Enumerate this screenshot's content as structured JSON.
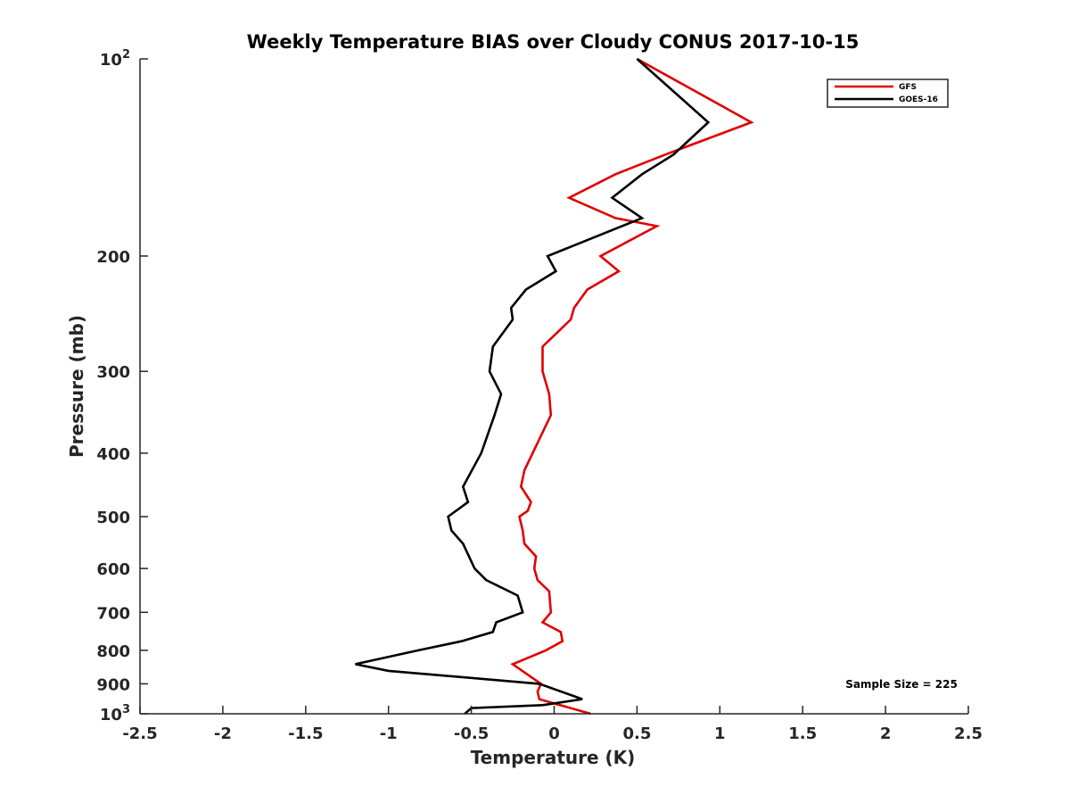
{
  "chart_data": {
    "type": "line",
    "title": "Weekly Temperature BIAS over Cloudy CONUS 2017-10-15",
    "xlabel": "Temperature (K)",
    "ylabel": "Pressure (mb)",
    "xlim": [
      -2.5,
      2.5
    ],
    "ylim": [
      1000,
      100
    ],
    "y_scale": "log",
    "y_reversed": true,
    "x_ticks": [
      -2.5,
      -2,
      -1.5,
      -1,
      -0.5,
      0,
      0.5,
      1,
      1.5,
      2,
      2.5
    ],
    "x_tick_labels": [
      "-2.5",
      "-2",
      "-1.5",
      "-1",
      "-0.5",
      "0",
      "0.5",
      "1",
      "1.5",
      "2",
      "2.5"
    ],
    "y_ticks": [
      100,
      200,
      300,
      400,
      500,
      600,
      700,
      800,
      900,
      1000
    ],
    "y_tick_labels": [
      "200",
      "300",
      "400",
      "500",
      "600",
      "700",
      "800",
      "900"
    ],
    "y_tick_power_labels": [
      {
        "value": 100,
        "base": "10",
        "exponent": "2"
      },
      {
        "value": 1000,
        "base": "10",
        "exponent": "3"
      }
    ],
    "grid": false,
    "legend_position": "top-right",
    "annotation": "Sample Size = 225",
    "series": [
      {
        "name": "GFS",
        "color": "#e00000",
        "points": [
          [
            0.5,
            100
          ],
          [
            1.19,
            125
          ],
          [
            0.67,
            140
          ],
          [
            0.37,
            150
          ],
          [
            0.09,
            163
          ],
          [
            0.37,
            175
          ],
          [
            0.62,
            180
          ],
          [
            0.28,
            200
          ],
          [
            0.39,
            211
          ],
          [
            0.2,
            225
          ],
          [
            0.12,
            240
          ],
          [
            0.1,
            250
          ],
          [
            -0.07,
            275
          ],
          [
            -0.07,
            300
          ],
          [
            -0.03,
            325
          ],
          [
            -0.02,
            350
          ],
          [
            -0.18,
            425
          ],
          [
            -0.2,
            450
          ],
          [
            -0.14,
            475
          ],
          [
            -0.16,
            490
          ],
          [
            -0.21,
            500
          ],
          [
            -0.19,
            525
          ],
          [
            -0.18,
            550
          ],
          [
            -0.11,
            575
          ],
          [
            -0.12,
            600
          ],
          [
            -0.1,
            625
          ],
          [
            -0.03,
            650
          ],
          [
            -0.02,
            700
          ],
          [
            -0.07,
            725
          ],
          [
            0.04,
            750
          ],
          [
            0.05,
            775
          ],
          [
            -0.05,
            800
          ],
          [
            -0.25,
            840
          ],
          [
            -0.08,
            900
          ],
          [
            -0.1,
            925
          ],
          [
            -0.09,
            950
          ],
          [
            0.22,
            1000
          ]
        ]
      },
      {
        "name": "GOES-16",
        "color": "#000000",
        "points": [
          [
            0.5,
            100
          ],
          [
            0.93,
            125
          ],
          [
            0.72,
            140
          ],
          [
            0.53,
            150
          ],
          [
            0.35,
            163
          ],
          [
            0.53,
            175
          ],
          [
            -0.04,
            200
          ],
          [
            0.01,
            211
          ],
          [
            -0.17,
            225
          ],
          [
            -0.26,
            240
          ],
          [
            -0.25,
            250
          ],
          [
            -0.37,
            275
          ],
          [
            -0.39,
            300
          ],
          [
            -0.32,
            325
          ],
          [
            -0.36,
            350
          ],
          [
            -0.44,
            400
          ],
          [
            -0.55,
            450
          ],
          [
            -0.52,
            475
          ],
          [
            -0.64,
            500
          ],
          [
            -0.62,
            525
          ],
          [
            -0.55,
            550
          ],
          [
            -0.48,
            600
          ],
          [
            -0.41,
            625
          ],
          [
            -0.22,
            660
          ],
          [
            -0.19,
            700
          ],
          [
            -0.35,
            725
          ],
          [
            -0.37,
            750
          ],
          [
            -0.56,
            775
          ],
          [
            -0.82,
            800
          ],
          [
            -1.2,
            840
          ],
          [
            -1.0,
            860
          ],
          [
            -0.09,
            900
          ],
          [
            0.17,
            950
          ],
          [
            -0.07,
            970
          ],
          [
            -0.5,
            980
          ],
          [
            -0.54,
            1000
          ]
        ]
      }
    ]
  }
}
